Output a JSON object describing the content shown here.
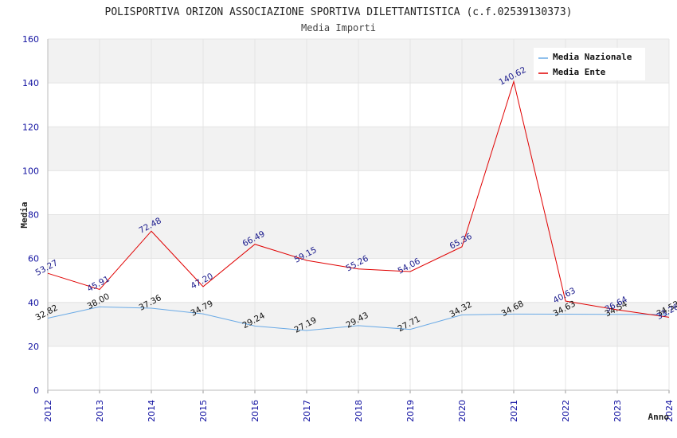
{
  "chart_data": {
    "type": "line",
    "title": "POLISPORTIVA ORIZON ASSOCIAZIONE SPORTIVA DILETTANTISTICA (c.f.02539130373)",
    "subtitle": "Media Importi",
    "xlabel": "Anno",
    "ylabel": "Media",
    "ylim": [
      0,
      160
    ],
    "yticks": [
      0,
      20,
      40,
      60,
      80,
      100,
      120,
      140,
      160
    ],
    "x": [
      "2012",
      "2013",
      "2014",
      "2015",
      "2016",
      "2017",
      "2018",
      "2019",
      "2020",
      "2021",
      "2022",
      "2023",
      "2024"
    ],
    "legend_position": "top-right",
    "series": [
      {
        "name": "Media Nazionale",
        "color": "#6aaae6",
        "values": [
          32.82,
          38.0,
          37.36,
          34.79,
          29.24,
          27.19,
          29.43,
          27.71,
          34.32,
          34.68,
          34.63,
          34.54,
          34.52
        ],
        "labels": [
          "32.82",
          "38.00",
          "37.36",
          "34.79",
          "29.24",
          "27.19",
          "29.43",
          "27.71",
          "34.32",
          "34.68",
          "34.63",
          "34.54",
          "34.52"
        ]
      },
      {
        "name": "Media Ente",
        "color": "#e00000",
        "values": [
          53.27,
          45.91,
          72.48,
          47.2,
          66.49,
          59.15,
          55.26,
          54.06,
          65.36,
          140.62,
          40.63,
          36.64,
          33.26
        ],
        "labels": [
          "53.27",
          "45.91",
          "72.48",
          "47.20",
          "66.49",
          "59.15",
          "55.26",
          "54.06",
          "65.36",
          "140.62",
          "40.63",
          "36.64",
          "33.26"
        ]
      }
    ]
  }
}
